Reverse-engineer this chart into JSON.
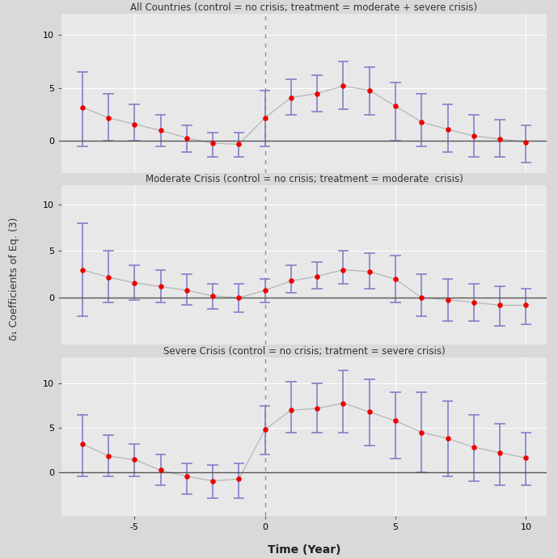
{
  "panels": [
    {
      "title": "All Countries (control = no crisis; treatment = moderate + severe crisis)",
      "x": [
        -7,
        -6,
        -5,
        -4,
        -3,
        -2,
        -1,
        0,
        1,
        2,
        3,
        4,
        5,
        6,
        7,
        8,
        9,
        10
      ],
      "y": [
        3.2,
        2.2,
        1.6,
        1.0,
        0.3,
        -0.2,
        -0.3,
        2.2,
        4.1,
        4.5,
        5.2,
        4.8,
        3.3,
        1.8,
        1.1,
        0.5,
        0.2,
        -0.1
      ],
      "ci_low": [
        -0.5,
        0.0,
        0.0,
        -0.5,
        -1.0,
        -1.5,
        -1.5,
        -0.5,
        2.5,
        2.8,
        3.0,
        2.5,
        0.0,
        -0.5,
        -1.0,
        -1.5,
        -1.5,
        -2.0
      ],
      "ci_high": [
        6.5,
        4.5,
        3.5,
        2.5,
        1.5,
        0.8,
        0.8,
        4.8,
        5.8,
        6.2,
        7.5,
        7.0,
        5.5,
        4.5,
        3.5,
        2.5,
        2.0,
        1.5
      ],
      "ylim": [
        -3,
        12
      ],
      "yticks": [
        0,
        5,
        10
      ]
    },
    {
      "title": "Moderate Crisis (control = no crisis; treatment = moderate  crisis)",
      "x": [
        -7,
        -6,
        -5,
        -4,
        -3,
        -2,
        -1,
        0,
        1,
        2,
        3,
        4,
        5,
        6,
        7,
        8,
        9,
        10
      ],
      "y": [
        3.0,
        2.2,
        1.6,
        1.2,
        0.8,
        0.2,
        0.0,
        0.8,
        1.8,
        2.3,
        3.0,
        2.8,
        2.0,
        0.0,
        -0.2,
        -0.5,
        -0.8,
        -0.8
      ],
      "ci_low": [
        -2.0,
        -0.5,
        -0.2,
        -0.5,
        -0.8,
        -1.2,
        -1.5,
        -0.5,
        0.5,
        1.0,
        1.5,
        1.0,
        -0.5,
        -2.0,
        -2.5,
        -2.5,
        -3.0,
        -2.8
      ],
      "ci_high": [
        8.0,
        5.0,
        3.5,
        3.0,
        2.5,
        1.5,
        1.5,
        2.0,
        3.5,
        3.8,
        5.0,
        4.8,
        4.5,
        2.5,
        2.0,
        1.5,
        1.2,
        1.0
      ],
      "ylim": [
        -5,
        12
      ],
      "yticks": [
        0,
        5,
        10
      ]
    },
    {
      "title": "Severe Crisis (control = no crisis; tratment = severe crisis)",
      "x": [
        -7,
        -6,
        -5,
        -4,
        -3,
        -2,
        -1,
        0,
        1,
        2,
        3,
        4,
        5,
        6,
        7,
        8,
        9,
        10
      ],
      "y": [
        3.2,
        1.8,
        1.4,
        0.2,
        -0.5,
        -1.0,
        -0.8,
        4.8,
        7.0,
        7.2,
        7.8,
        6.8,
        5.8,
        4.5,
        3.8,
        2.8,
        2.2,
        1.6
      ],
      "ci_low": [
        -0.5,
        -0.5,
        -0.5,
        -1.5,
        -2.5,
        -3.0,
        -3.0,
        2.0,
        4.5,
        4.5,
        4.5,
        3.0,
        1.5,
        0.0,
        -0.5,
        -1.0,
        -1.5,
        -1.5
      ],
      "ci_high": [
        6.5,
        4.2,
        3.2,
        2.0,
        1.0,
        0.8,
        1.0,
        7.5,
        10.2,
        10.0,
        11.5,
        10.5,
        9.0,
        9.0,
        8.0,
        6.5,
        5.5,
        4.5
      ],
      "ylim": [
        -5,
        13
      ],
      "yticks": [
        0,
        5,
        10
      ]
    }
  ],
  "ylabel": "δ₁ Coefficients of Eq. (3)",
  "xlabel": "Time (Year)",
  "line_color": "#b0b0b0",
  "dot_color": "#ee0000",
  "ci_color": "#8888cc",
  "hline_color": "#555555",
  "vline_color": "#888888",
  "bg_color": "#d9d9d9",
  "panel_bg_color": "#e8e8e8",
  "grid_color": "#ffffff",
  "title_fontsize": 8.5,
  "label_fontsize": 9,
  "tick_fontsize": 8,
  "xtick_positions": [
    -5,
    0,
    5,
    10
  ],
  "xtick_labels": [
    "-5",
    "0",
    "5",
    "10"
  ]
}
